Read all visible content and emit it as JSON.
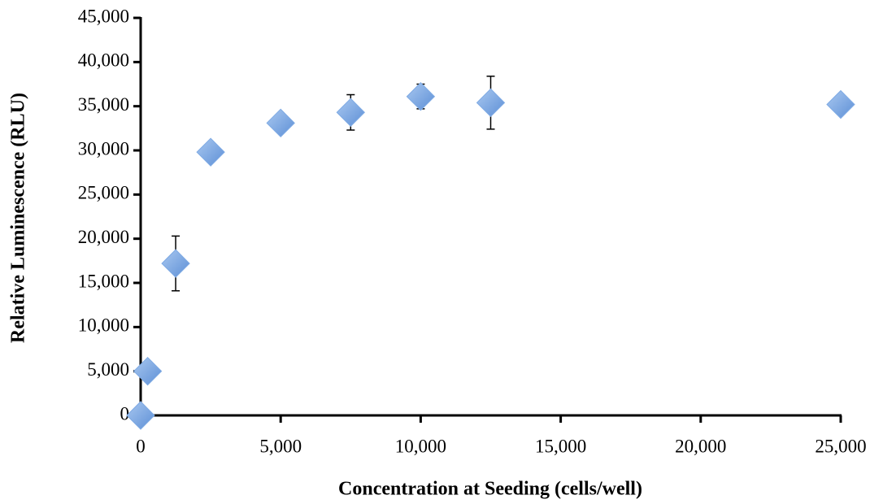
{
  "chart_data": {
    "type": "scatter",
    "x_label": "Concentration at Seeding (cells/well)",
    "y_label": "Relative Luminescence (RLU)",
    "series": [
      {
        "color": "#7eaae4",
        "x": [
          0,
          250,
          1250,
          2500,
          5000,
          7500,
          10000,
          12500,
          25000
        ],
        "values": [
          0,
          5000,
          17200,
          29800,
          33100,
          34300,
          36100,
          35400,
          35200
        ],
        "errors": [
          null,
          null,
          3100,
          null,
          null,
          2000,
          1400,
          3000,
          null
        ]
      }
    ],
    "xlim": [
      0,
      25000
    ],
    "xticks": [
      0,
      {
        "value": 5000,
        "label": "5,000"
      },
      {
        "value": 10000,
        "label": "10,000"
      },
      {
        "value": 15000,
        "label": "15,000"
      },
      {
        "value": 20000,
        "label": "20,000"
      },
      {
        "value": 25000,
        "label": "25,000"
      }
    ],
    "ylim": [
      0,
      45000
    ],
    "yticks": [
      0,
      {
        "value": 5000,
        "label": "5,000"
      },
      {
        "value": 10000,
        "label": "10,000"
      },
      {
        "value": 15000,
        "label": "15,000"
      },
      {
        "value": 20000,
        "label": "20,000"
      },
      {
        "value": 25000,
        "label": "25,000"
      },
      {
        "value": 30000,
        "label": "30,000"
      },
      {
        "value": 35000,
        "label": "35,000"
      },
      {
        "value": 40000,
        "label": "40,000"
      },
      {
        "value": 45000,
        "label": "45,000"
      }
    ]
  }
}
